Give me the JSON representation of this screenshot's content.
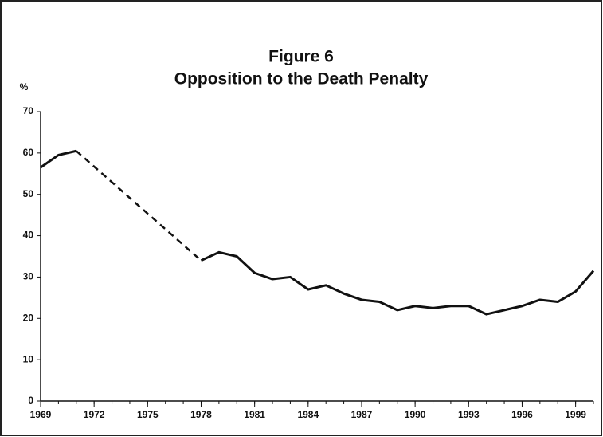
{
  "chart_data": {
    "type": "line",
    "title": "Figure 6",
    "subtitle": "Opposition to the Death Penalty",
    "y_label": "%",
    "x": [
      1969,
      1970,
      1971,
      1972,
      1973,
      1974,
      1975,
      1976,
      1977,
      1978,
      1979,
      1980,
      1981,
      1982,
      1983,
      1984,
      1985,
      1986,
      1987,
      1988,
      1989,
      1990,
      1991,
      1992,
      1993,
      1994,
      1995,
      1996,
      1997,
      1998,
      1999,
      2000
    ],
    "series": [
      {
        "color": "#111111",
        "values": [
          56.5,
          59.5,
          60.5,
          null,
          null,
          null,
          null,
          null,
          null,
          34,
          36,
          35,
          31,
          29.5,
          30,
          27,
          28,
          26,
          24.5,
          24,
          22,
          23,
          22.5,
          23,
          23,
          21,
          22,
          23,
          24.5,
          24,
          26.5,
          31.5
        ]
      }
    ],
    "xlim": [
      1969,
      2000
    ],
    "xticks": [
      1969,
      1972,
      1975,
      1978,
      1981,
      1984,
      1987,
      1990,
      1993,
      1996,
      1999
    ],
    "ylim": [
      0,
      70
    ],
    "yticks": [
      0,
      10,
      20,
      30,
      40,
      50,
      60,
      70
    ],
    "gap_style": "dashed"
  }
}
